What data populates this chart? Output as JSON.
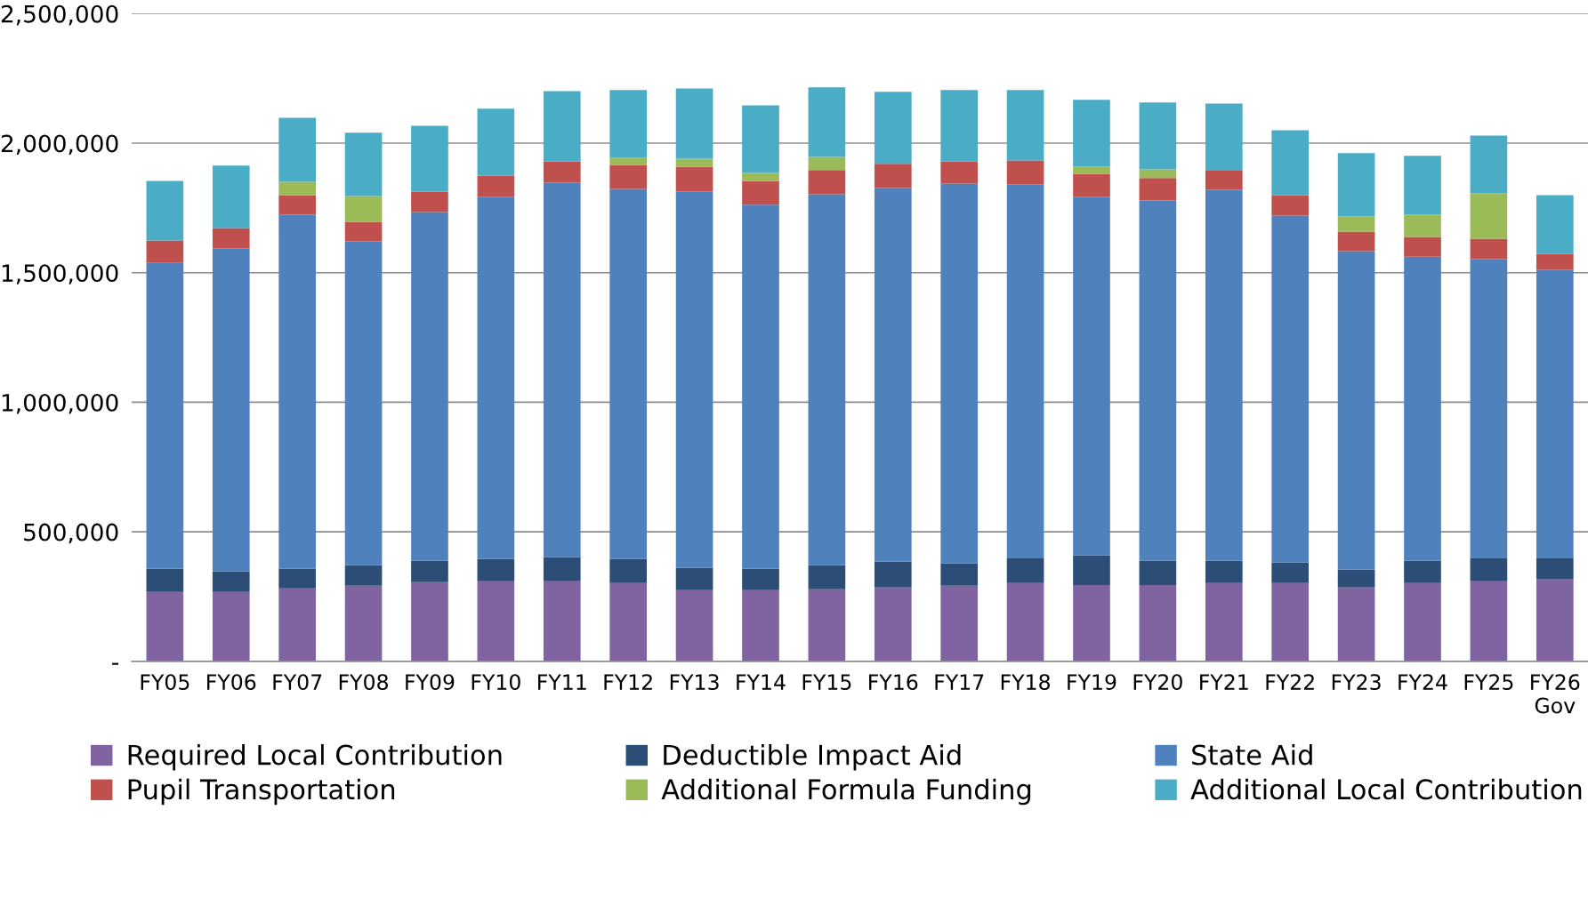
{
  "chart_data": {
    "type": "bar",
    "stacked": true,
    "categories": [
      "FY05",
      "FY06",
      "FY07",
      "FY08",
      "FY09",
      "FY10",
      "FY11",
      "FY12",
      "FY13",
      "FY14",
      "FY15",
      "FY16",
      "FY17",
      "FY18",
      "FY19",
      "FY20",
      "FY21",
      "FY22",
      "FY23",
      "FY24",
      "FY25",
      "FY26\nGov"
    ],
    "series": [
      {
        "name": "Required Local Contribution",
        "color": "#8064a2",
        "values": [
          268000,
          268000,
          282000,
          292000,
          306000,
          309000,
          309000,
          302000,
          275000,
          275000,
          278000,
          285000,
          292000,
          302000,
          295000,
          295000,
          302000,
          302000,
          285000,
          302000,
          309000,
          319000
        ]
      },
      {
        "name": "Deductible Impact Aid",
        "color": "#2c4d75",
        "values": [
          89000,
          79000,
          75000,
          79000,
          82000,
          86000,
          93000,
          93000,
          86000,
          82000,
          93000,
          100000,
          86000,
          96000,
          114000,
          93000,
          86000,
          79000,
          69000,
          86000,
          89000,
          79000
        ]
      },
      {
        "name": "State Aid",
        "color": "#4f81bd",
        "values": [
          1181000,
          1246000,
          1367000,
          1250000,
          1346000,
          1398000,
          1445000,
          1428000,
          1452000,
          1405000,
          1432000,
          1442000,
          1466000,
          1443000,
          1384000,
          1391000,
          1432000,
          1339000,
          1229000,
          1174000,
          1154000,
          1113000
        ]
      },
      {
        "name": "Pupil Transportation",
        "color": "#c0504d",
        "values": [
          86000,
          79000,
          75000,
          75000,
          79000,
          82000,
          83000,
          93000,
          96000,
          92000,
          93000,
          93000,
          86000,
          92000,
          89000,
          86000,
          76000,
          79000,
          76000,
          76000,
          79000,
          62000
        ]
      },
      {
        "name": "Additional Formula Funding",
        "color": "#9bbb59",
        "values": [
          0,
          0,
          52000,
          100000,
          0,
          0,
          0,
          28000,
          31000,
          31000,
          51000,
          0,
          0,
          0,
          27000,
          34000,
          0,
          0,
          58000,
          86000,
          175000,
          0
        ]
      },
      {
        "name": "Additional Local Contribution",
        "color": "#4bacc6",
        "values": [
          230000,
          241000,
          247000,
          244000,
          254000,
          258000,
          271000,
          261000,
          271000,
          261000,
          268000,
          278000,
          275000,
          272000,
          258000,
          258000,
          257000,
          251000,
          244000,
          227000,
          223000,
          226000
        ]
      }
    ],
    "ylim": [
      0,
      2500000
    ],
    "yticks": [
      {
        "value": 0,
        "label": "-"
      },
      {
        "value": 500000,
        "label": "500,000"
      },
      {
        "value": 1000000,
        "label": "1,000,000"
      },
      {
        "value": 1500000,
        "label": "1,500,000"
      },
      {
        "value": 2000000,
        "label": "2,000,000"
      },
      {
        "value": 2500000,
        "label": "2,500,000"
      }
    ],
    "grid": "y",
    "legend": "bottom"
  }
}
